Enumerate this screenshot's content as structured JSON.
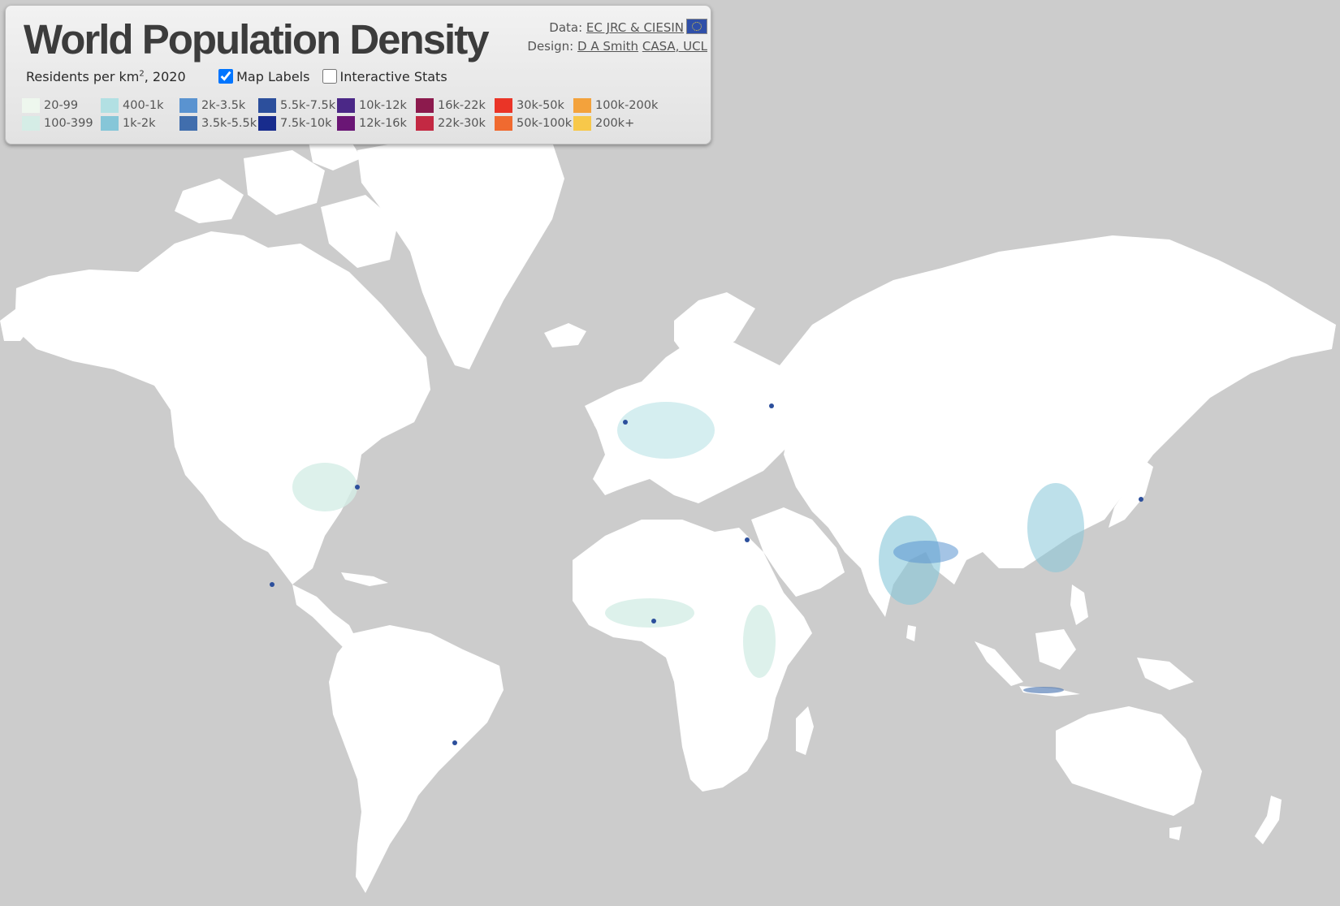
{
  "title": "World Population Density",
  "credits": {
    "data_label": "Data:",
    "data_link": "EC JRC & CIESIN",
    "flag_icon": "eu-flag-icon",
    "design_label": "Design:",
    "design_link_1": "D A Smith",
    "design_link_2": "CASA, UCL"
  },
  "legend": {
    "subtitle_pre": "Residents per km",
    "subtitle_sup": "2",
    "subtitle_post": ", 2020",
    "classes": [
      {
        "label": "20-99",
        "color": "#eef7ee"
      },
      {
        "label": "100-399",
        "color": "#d5ede6"
      },
      {
        "label": "400-1k",
        "color": "#b2e0e3"
      },
      {
        "label": "1k-2k",
        "color": "#86c6d8"
      },
      {
        "label": "2k-3.5k",
        "color": "#5a93d0"
      },
      {
        "label": "3.5k-5.5k",
        "color": "#416ead"
      },
      {
        "label": "5.5k-7.5k",
        "color": "#2c4f9c"
      },
      {
        "label": "7.5k-10k",
        "color": "#182c8d"
      },
      {
        "label": "10k-12k",
        "color": "#4b2887"
      },
      {
        "label": "12k-16k",
        "color": "#6a1675"
      },
      {
        "label": "16k-22k",
        "color": "#8c1a4d"
      },
      {
        "label": "22k-30k",
        "color": "#c32943"
      },
      {
        "label": "30k-50k",
        "color": "#ea3427"
      },
      {
        "label": "50k-100k",
        "color": "#f06a30"
      },
      {
        "label": "100k-200k",
        "color": "#f3a23c"
      },
      {
        "label": "200k+",
        "color": "#f7c84a"
      }
    ]
  },
  "controls": {
    "map_labels": {
      "label": "Map Labels",
      "checked": true
    },
    "interactive_stats": {
      "label": "Interactive Stats",
      "checked": false
    }
  },
  "map": {
    "ocean_color": "#cccccc",
    "land_color": "#ffffff"
  }
}
